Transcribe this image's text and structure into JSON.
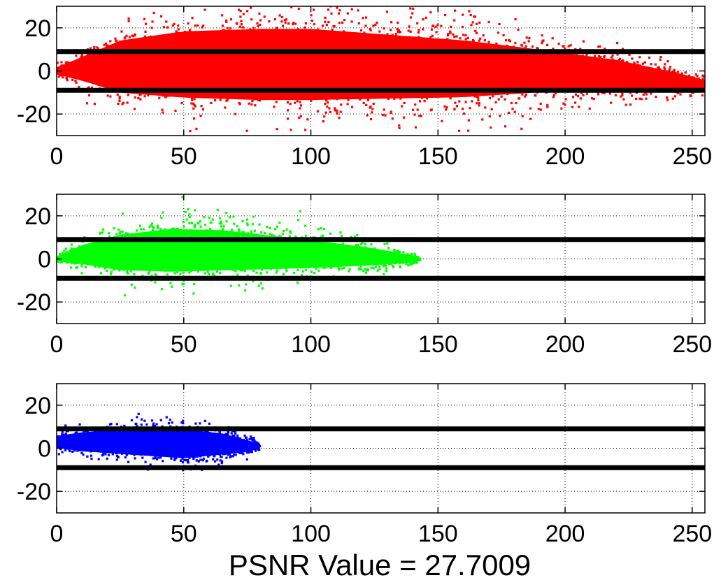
{
  "chart_data": [
    {
      "type": "scatter",
      "title": "",
      "xlabel": "",
      "ylabel": "",
      "xlim": [
        0,
        255
      ],
      "ylim": [
        -30,
        30
      ],
      "xticks": [
        0,
        50,
        100,
        150,
        200,
        250
      ],
      "yticks": [
        -20,
        0,
        20
      ],
      "grid": true,
      "color": "#ff0000",
      "threshold_lines": [
        9,
        -9
      ],
      "spread_envelope": [
        [
          0,
          0,
          3
        ],
        [
          10,
          1,
          10
        ],
        [
          25,
          2,
          22
        ],
        [
          50,
          3,
          28
        ],
        [
          80,
          3,
          30
        ],
        [
          100,
          3,
          30
        ],
        [
          130,
          2,
          27
        ],
        [
          160,
          1,
          24
        ],
        [
          190,
          0,
          18
        ],
        [
          220,
          -2,
          13
        ],
        [
          245,
          -5,
          7
        ],
        [
          255,
          -7,
          5
        ]
      ],
      "n_points": 3200
    },
    {
      "type": "scatter",
      "title": "",
      "xlabel": "",
      "ylabel": "",
      "xlim": [
        0,
        255
      ],
      "ylim": [
        -30,
        30
      ],
      "xticks": [
        0,
        50,
        100,
        150,
        200,
        250
      ],
      "yticks": [
        -20,
        0,
        20
      ],
      "grid": true,
      "color": "#00ff00",
      "threshold_lines": [
        9,
        -9
      ],
      "spread_envelope": [
        [
          0,
          0,
          2
        ],
        [
          10,
          2,
          8
        ],
        [
          25,
          3,
          15
        ],
        [
          45,
          4,
          18
        ],
        [
          65,
          4,
          17
        ],
        [
          85,
          3,
          14
        ],
        [
          105,
          2,
          11
        ],
        [
          125,
          1,
          7
        ],
        [
          140,
          0,
          3
        ],
        [
          143,
          0,
          1
        ]
      ],
      "n_points": 1800
    },
    {
      "type": "scatter",
      "title": "",
      "xlabel": "",
      "ylabel": "",
      "xlim": [
        0,
        255
      ],
      "ylim": [
        -30,
        30
      ],
      "xticks": [
        0,
        50,
        100,
        150,
        200,
        250
      ],
      "yticks": [
        -20,
        0,
        20
      ],
      "grid": true,
      "color": "#0000ff",
      "threshold_lines": [
        9,
        -9
      ],
      "spread_envelope": [
        [
          0,
          3,
          5
        ],
        [
          10,
          3,
          8
        ],
        [
          30,
          3,
          11
        ],
        [
          50,
          2,
          12
        ],
        [
          65,
          2,
          9
        ],
        [
          75,
          1,
          5
        ],
        [
          80,
          1,
          2
        ]
      ],
      "n_points": 1100
    }
  ],
  "caption": "PSNR Value = 27.7009"
}
